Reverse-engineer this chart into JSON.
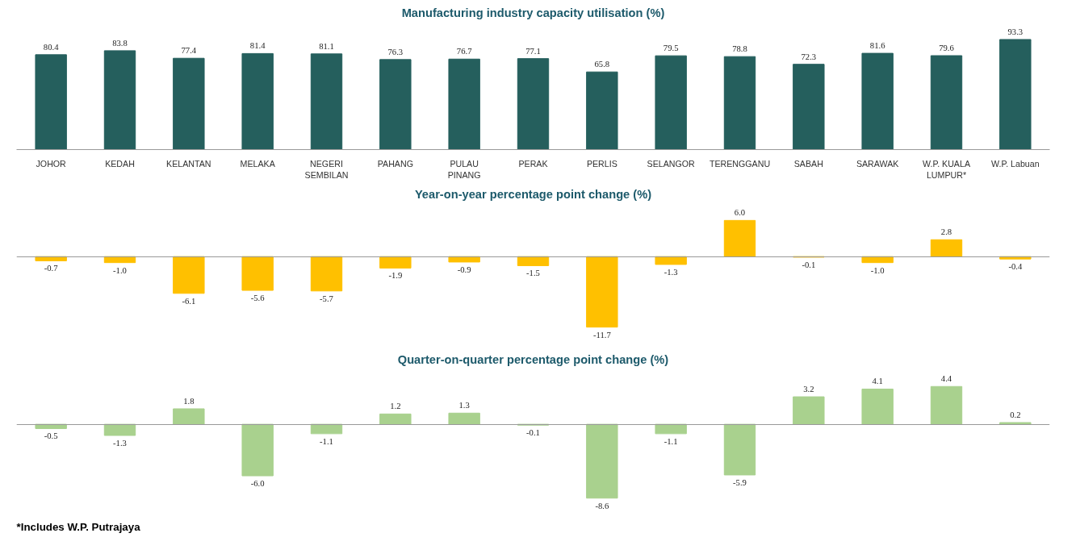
{
  "chart_data": [
    {
      "type": "bar",
      "title": "Manufacturing industry capacity utilisation (%)",
      "categories": [
        "JOHOR",
        "KEDAH",
        "KELANTAN",
        "MELAKA",
        "NEGERI SEMBILAN",
        "PAHANG",
        "PULAU PINANG",
        "PERAK",
        "PERLIS",
        "SELANGOR",
        "TERENGGANU",
        "SABAH",
        "SARAWAK",
        "W.P. KUALA LUMPUR*",
        "W.P. Labuan"
      ],
      "values": [
        80.4,
        83.8,
        77.4,
        81.4,
        81.1,
        76.3,
        76.7,
        77.1,
        65.8,
        79.5,
        78.8,
        72.3,
        81.6,
        79.6,
        93.3
      ],
      "value_labels": [
        "80.4",
        "83.8",
        "77.4",
        "81.4",
        "81.1",
        "76.3",
        "76.7",
        "77.1",
        "65.8",
        "79.5",
        "78.8",
        "72.3",
        "81.6",
        "79.6",
        "93.3"
      ],
      "color": "#255f5d",
      "tick_labels": "x"
    },
    {
      "type": "bar",
      "title": "Year-on-year percentage point change (%)",
      "categories": [
        null,
        null,
        null,
        null,
        null,
        null,
        null,
        null,
        null,
        null,
        null,
        null,
        null,
        null,
        null
      ],
      "values": [
        -0.7,
        -1.0,
        -6.1,
        -5.6,
        -5.7,
        -1.9,
        -0.9,
        -1.5,
        -11.7,
        -1.3,
        6.0,
        -0.1,
        -1.0,
        2.8,
        -0.4
      ],
      "value_labels": [
        "-0.7",
        "-1.0",
        "-6.1",
        "-5.6",
        "-5.7",
        "-1.9",
        "-0.9",
        "-1.5",
        "-11.7",
        "-1.3",
        "6.0",
        "-0.1",
        "-1.0",
        "2.8",
        "-0.4"
      ],
      "color": "#ffc000",
      "tick_labels": false
    },
    {
      "type": "bar",
      "title": "Quarter-on-quarter percentage point change (%)",
      "categories": [
        null,
        null,
        null,
        null,
        null,
        null,
        null,
        null,
        null,
        null,
        null,
        null,
        null,
        null,
        null
      ],
      "values": [
        -0.5,
        -1.3,
        1.8,
        -6.0,
        -1.1,
        1.2,
        1.3,
        -0.1,
        -8.6,
        -1.1,
        -5.9,
        3.2,
        4.1,
        4.4,
        0.2
      ],
      "value_labels": [
        "-0.5",
        "-1.3",
        "1.8",
        "-6.0",
        "-1.1",
        "1.2",
        "1.3",
        "-0.1",
        "-8.6",
        "-1.1",
        "-5.9",
        "3.2",
        "4.1",
        "4.4",
        "0.2"
      ],
      "color": "#a9d18e",
      "tick_labels": false,
      "annotations": [
        "*Includes W.P. Putrajaya"
      ]
    }
  ]
}
